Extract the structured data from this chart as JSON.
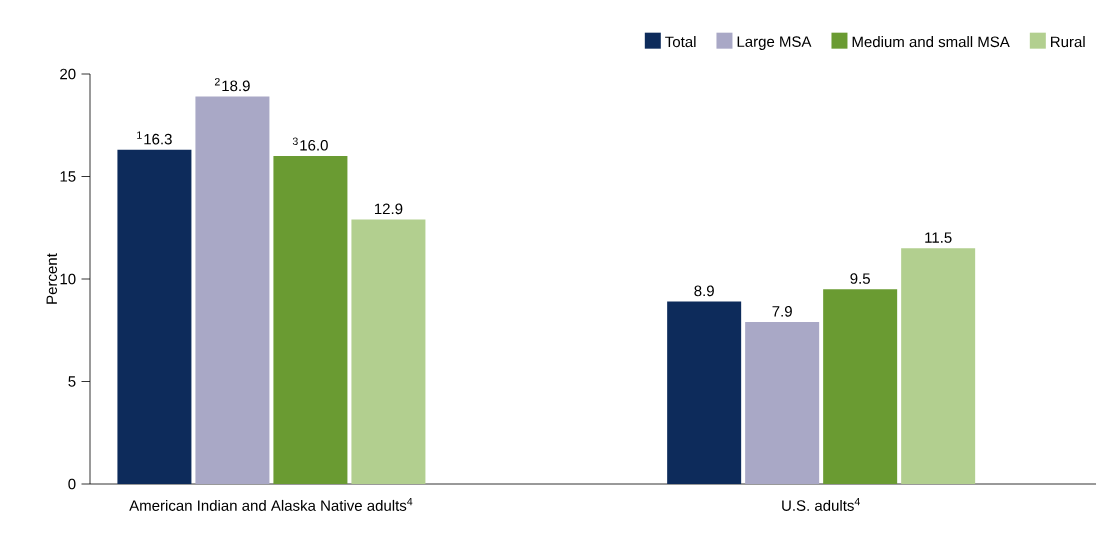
{
  "chart_data": {
    "type": "bar",
    "categories": [
      "American Indian and Alaska Native adults$^{4}$",
      "U.S. adults$^{4}$"
    ],
    "ylabel": "Percent",
    "ylim": [
      0,
      20
    ],
    "yticks": [
      0,
      5,
      10,
      15,
      20
    ],
    "legend": "top right",
    "series": [
      {
        "name": "Total",
        "color": "#0d2b5b",
        "values": [
          16.3,
          8.9
        ],
        "value_labels": [
          "$^{1}$16.3",
          "8.9"
        ]
      },
      {
        "name": "Large MSA",
        "color": "#a9a8c6",
        "values": [
          18.9,
          7.9
        ],
        "value_labels": [
          "$^{2}$18.9",
          "7.9"
        ]
      },
      {
        "name": "Medium and small MSA",
        "color": "#6a9b32",
        "values": [
          16.0,
          9.5
        ],
        "value_labels": [
          "$^{3}$16.0",
          "9.5"
        ]
      },
      {
        "name": "Rural",
        "color": "#b2cf8f",
        "values": [
          12.9,
          11.5
        ],
        "value_labels": [
          "12.9",
          "11.5"
        ]
      }
    ]
  }
}
